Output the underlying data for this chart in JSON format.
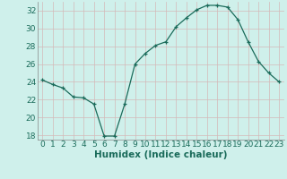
{
  "x": [
    0,
    1,
    2,
    3,
    4,
    5,
    6,
    7,
    8,
    9,
    10,
    11,
    12,
    13,
    14,
    15,
    16,
    17,
    18,
    19,
    20,
    21,
    22,
    23
  ],
  "y": [
    24.2,
    23.7,
    23.3,
    22.3,
    22.2,
    21.5,
    17.9,
    17.9,
    21.5,
    26.0,
    27.2,
    28.1,
    28.5,
    30.2,
    31.2,
    32.1,
    32.6,
    32.6,
    32.4,
    31.0,
    28.5,
    26.3,
    25.0,
    24.0
  ],
  "xlabel": "Humidex (Indice chaleur)",
  "ylim": [
    17.5,
    33.0
  ],
  "yticks": [
    18,
    20,
    22,
    24,
    26,
    28,
    30,
    32
  ],
  "xticks": [
    0,
    1,
    2,
    3,
    4,
    5,
    6,
    7,
    8,
    9,
    10,
    11,
    12,
    13,
    14,
    15,
    16,
    17,
    18,
    19,
    20,
    21,
    22,
    23
  ],
  "line_color": "#1a6b5a",
  "marker": "+",
  "bg_color": "#cff0eb",
  "grid_color": "#d4b8b8",
  "fig_bg": "#cff0eb",
  "tick_color": "#1a6b5a",
  "label_fontsize": 6.5,
  "xlabel_fontsize": 7.5
}
